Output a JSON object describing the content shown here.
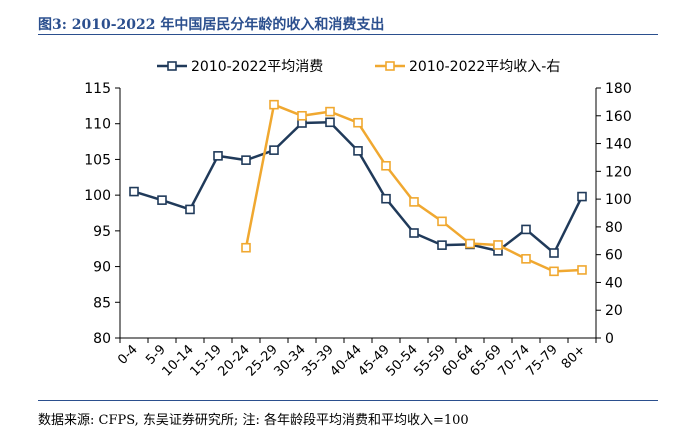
{
  "figure_title": "图3: 2010-2022 年中国居民分年龄的收入和消费支出",
  "source_note": "数据来源: CFPS, 东吴证券研究所; 注: 各年龄段平均消费和平均收入=100",
  "colors": {
    "consumption": "#203a5a",
    "income": "#f0a830",
    "rule": "#2b4f8e",
    "axis": "#000000"
  },
  "chart_data": {
    "type": "line",
    "categories": [
      "0-4",
      "5-9",
      "10-14",
      "15-19",
      "20-24",
      "25-29",
      "30-34",
      "35-39",
      "40-44",
      "45-49",
      "50-54",
      "55-59",
      "60-64",
      "65-69",
      "70-74",
      "75-79",
      "80+"
    ],
    "series": [
      {
        "name": "2010-2022平均消费",
        "axis": "left",
        "color": "#203a5a",
        "values": [
          100.5,
          99.3,
          98.0,
          105.5,
          104.9,
          106.3,
          110.1,
          110.2,
          106.2,
          99.5,
          94.7,
          93.0,
          93.1,
          92.2,
          95.2,
          91.9,
          99.8
        ]
      },
      {
        "name": "2010-2022平均收入-右",
        "axis": "right",
        "color": "#f0a830",
        "values": [
          null,
          null,
          null,
          null,
          65,
          168,
          160,
          163,
          155,
          124,
          98,
          84,
          68,
          67,
          57,
          48,
          49
        ]
      }
    ],
    "y_left": {
      "min": 80,
      "max": 115,
      "ticks": [
        80,
        85,
        90,
        95,
        100,
        105,
        110,
        115
      ]
    },
    "y_right": {
      "min": 0,
      "max": 180,
      "ticks": [
        0,
        20,
        40,
        60,
        80,
        100,
        120,
        140,
        160,
        180
      ]
    },
    "legend_position": "top",
    "grid": false
  }
}
